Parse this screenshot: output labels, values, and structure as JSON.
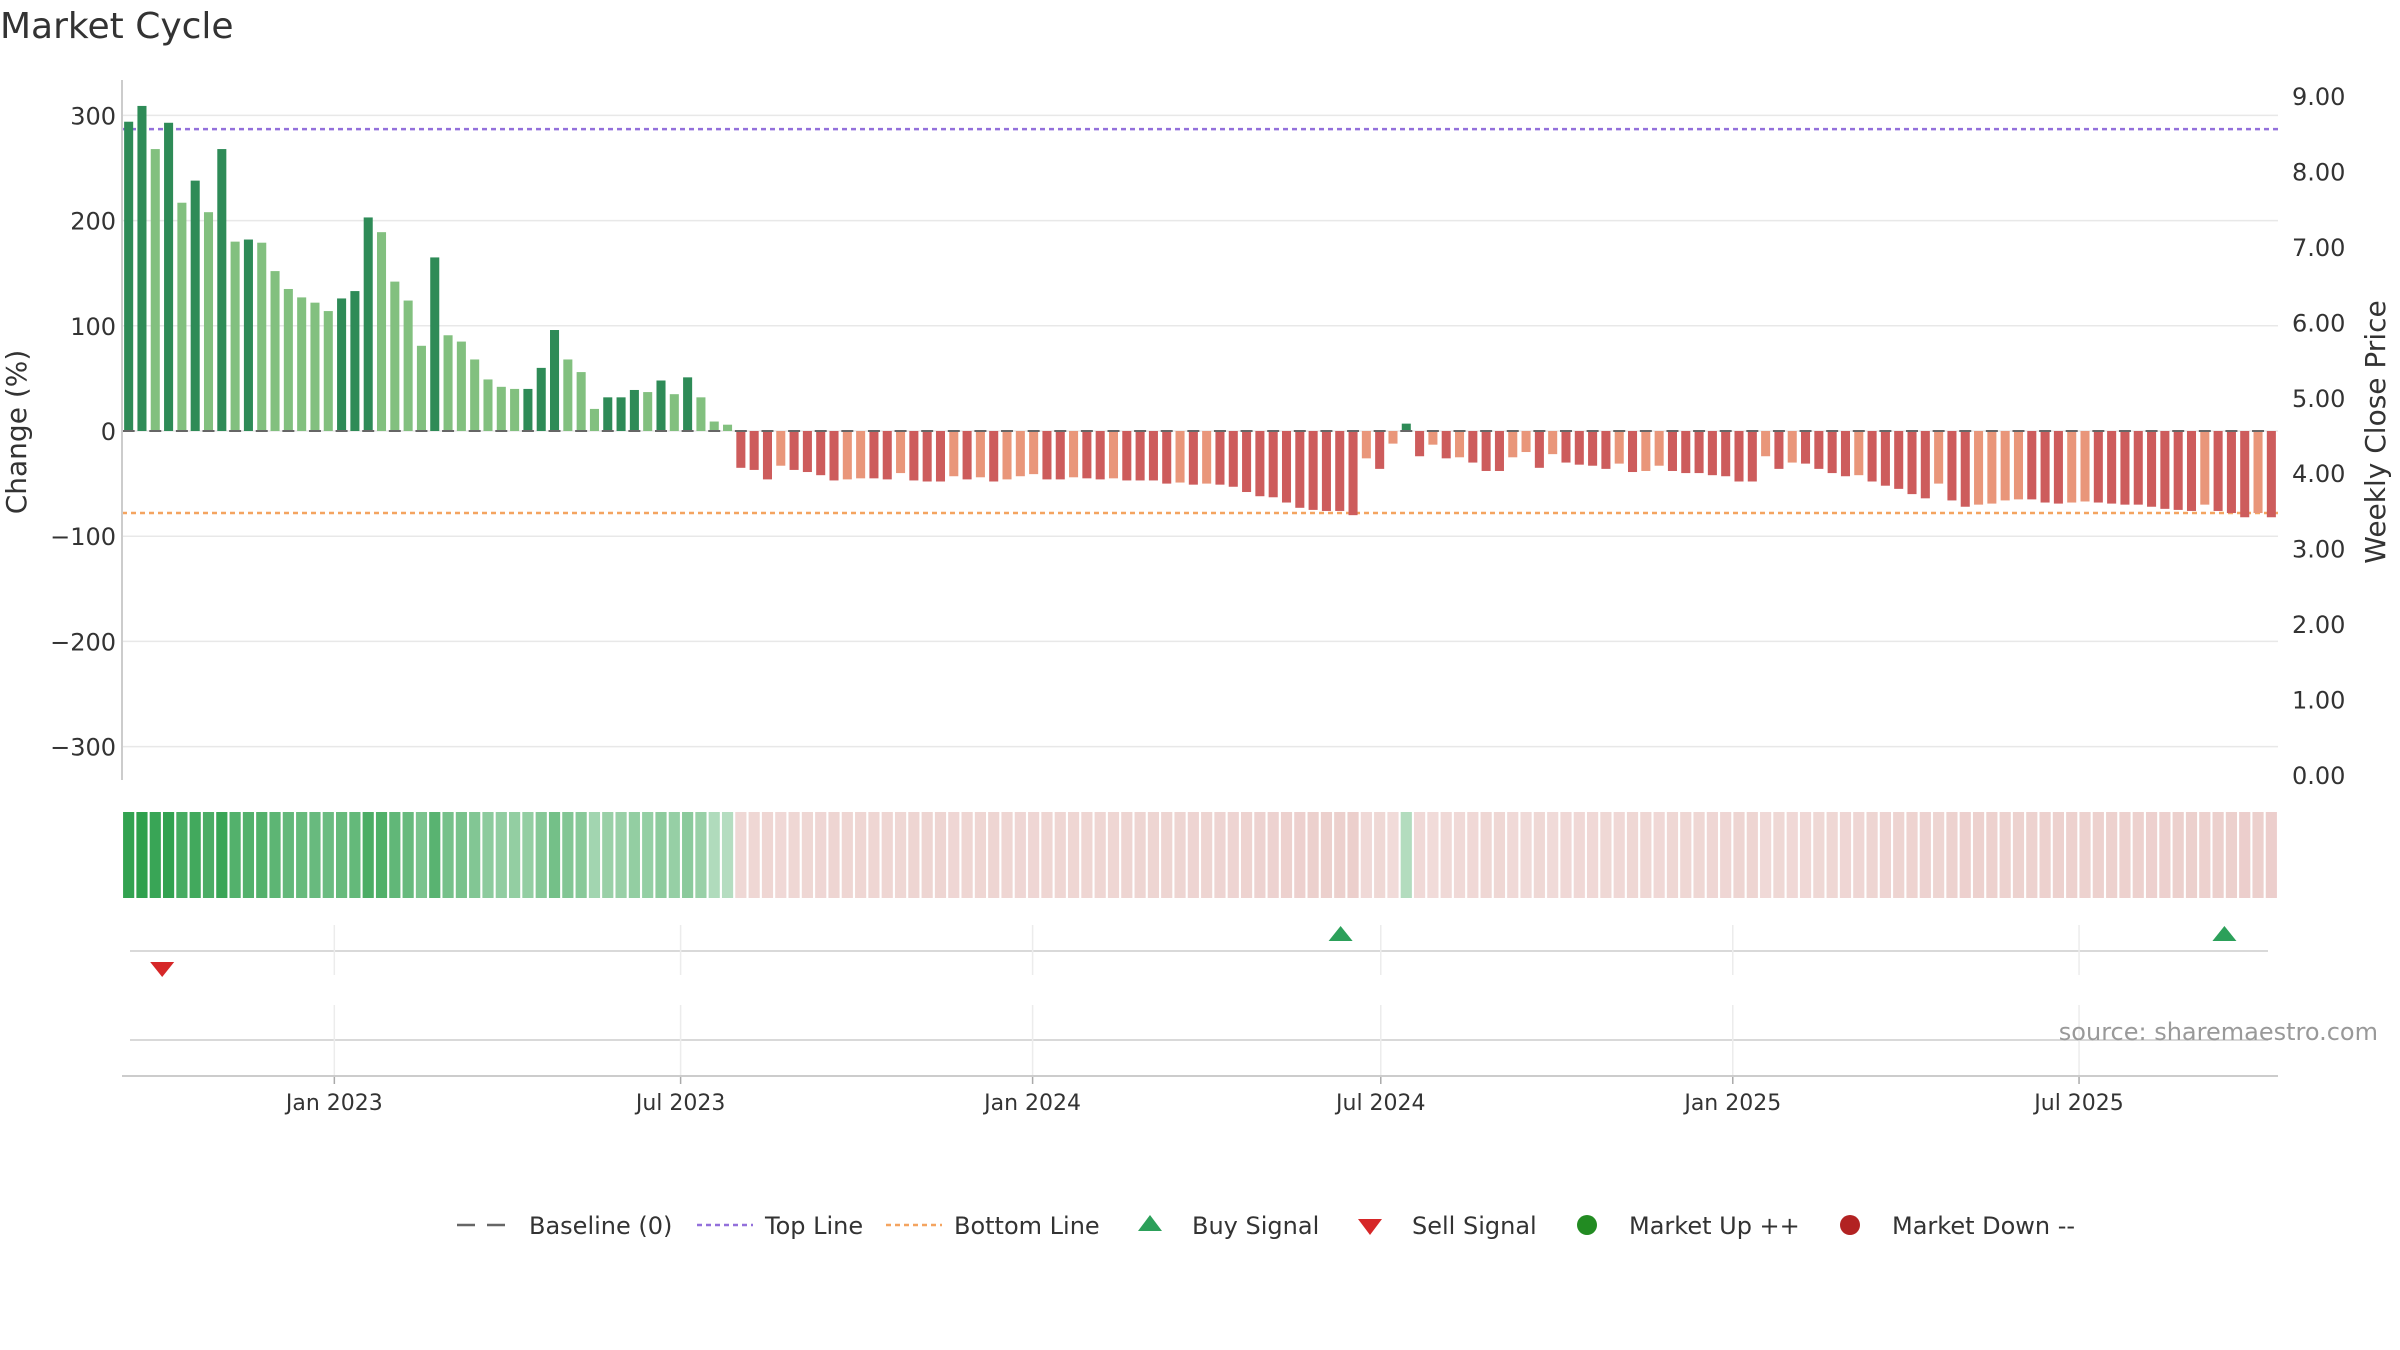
{
  "chart_data": {
    "type": "bar",
    "title": "Market Cycle",
    "ylabel_left": "Change (%)",
    "ylabel_right": "Weekly Close Price",
    "ylim_left": [
      -330,
      330
    ],
    "ylim_right": [
      0,
      9.2
    ],
    "yticks_left": [
      300,
      200,
      100,
      0,
      -100,
      -200,
      -300
    ],
    "ytick_labels_left": [
      "300",
      "200",
      "100",
      "0",
      "−100",
      "−200",
      "−300"
    ],
    "yticks_right": [
      9,
      8,
      7,
      6,
      5,
      4,
      3,
      2,
      1,
      0
    ],
    "ytick_labels_right": [
      "9.00",
      "8.00",
      "7.00",
      "6.00",
      "5.00",
      "4.00",
      "3.00",
      "2.00",
      "1.00",
      "0.00"
    ],
    "x_start": "2022-09-12",
    "x_end": "2025-10-13",
    "xticks": [
      {
        "date": "2023-01-01",
        "label": "Jan 2023"
      },
      {
        "date": "2023-07-01",
        "label": "Jul 2023"
      },
      {
        "date": "2024-01-01",
        "label": "Jan 2024"
      },
      {
        "date": "2024-07-01",
        "label": "Jul 2024"
      },
      {
        "date": "2025-01-01",
        "label": "Jan 2025"
      },
      {
        "date": "2025-07-01",
        "label": "Jul 2025"
      }
    ],
    "top_line": 287,
    "bottom_line": -78,
    "baseline": 0,
    "series": [
      {
        "name": "Change",
        "values": [
          294,
          309,
          268,
          293,
          217,
          238,
          208,
          268,
          180,
          182,
          179,
          152,
          135,
          127,
          122,
          114,
          126,
          133,
          203,
          189,
          142,
          124,
          81,
          165,
          91,
          85,
          68,
          49,
          42,
          40,
          40,
          60,
          96,
          68,
          56,
          21,
          32,
          32,
          39,
          37,
          48,
          35,
          51,
          32,
          9,
          6,
          -35,
          -37,
          -46,
          -33,
          -37,
          -39,
          -42,
          -47,
          -46,
          -45,
          -45,
          -46,
          -40,
          -47,
          -48,
          -48,
          -43,
          -46,
          -44,
          -48,
          -46,
          -43,
          -41,
          -46,
          -46,
          -44,
          -45,
          -46,
          -45,
          -47,
          -47,
          -47,
          -50,
          -49,
          -51,
          -50,
          -51,
          -53,
          -58,
          -62,
          -63,
          -68,
          -73,
          -75,
          -76,
          -76,
          -80,
          -26,
          -36,
          -12,
          7,
          -24,
          -13,
          -26,
          -25,
          -30,
          -38,
          -38,
          -25,
          -20,
          -35,
          -22,
          -30,
          -32,
          -33,
          -36,
          -31,
          -39,
          -38,
          -33,
          -38,
          -40,
          -40,
          -42,
          -43,
          -48,
          -48,
          -24,
          -36,
          -30,
          -31,
          -36,
          -40,
          -43,
          -42,
          -48,
          -52,
          -55,
          -60,
          -64,
          -50,
          -66,
          -72,
          -70,
          -69,
          -66,
          -65,
          -65,
          -68,
          -69,
          -68,
          -67,
          -68,
          -69,
          -70,
          -70,
          -72,
          -74,
          -75,
          -76,
          -70,
          -76,
          -78,
          -82,
          -78,
          -82
        ]
      }
    ],
    "signals": [
      {
        "type": "sell",
        "date": "2022-10-03"
      },
      {
        "type": "buy",
        "date": "2024-06-10"
      },
      {
        "type": "buy",
        "date": "2025-09-15"
      }
    ],
    "source_text": "source: sharemaestro.com",
    "legend": [
      {
        "key": "baseline",
        "label": "Baseline (0)"
      },
      {
        "key": "top",
        "label": "Top Line"
      },
      {
        "key": "bottom",
        "label": "Bottom Line"
      },
      {
        "key": "buy",
        "label": "Buy Signal"
      },
      {
        "key": "sell",
        "label": "Sell Signal"
      },
      {
        "key": "up",
        "label": "Market Up ++"
      },
      {
        "key": "down",
        "label": "Market Down --"
      }
    ],
    "legend_position": "bottom-center",
    "grid": true,
    "colors": {
      "bar_green_dark": "#2e8b57",
      "bar_green_light": "#82c07f",
      "bar_red_dark": "#cd5c5c",
      "bar_red_light": "#e9967a",
      "top_line": "#9370db",
      "bottom_line": "#f4a460",
      "buy": "#2ca05a",
      "sell": "#d62728",
      "market_up": "#228b22",
      "market_down": "#b22222",
      "baseline": "#666666"
    }
  }
}
